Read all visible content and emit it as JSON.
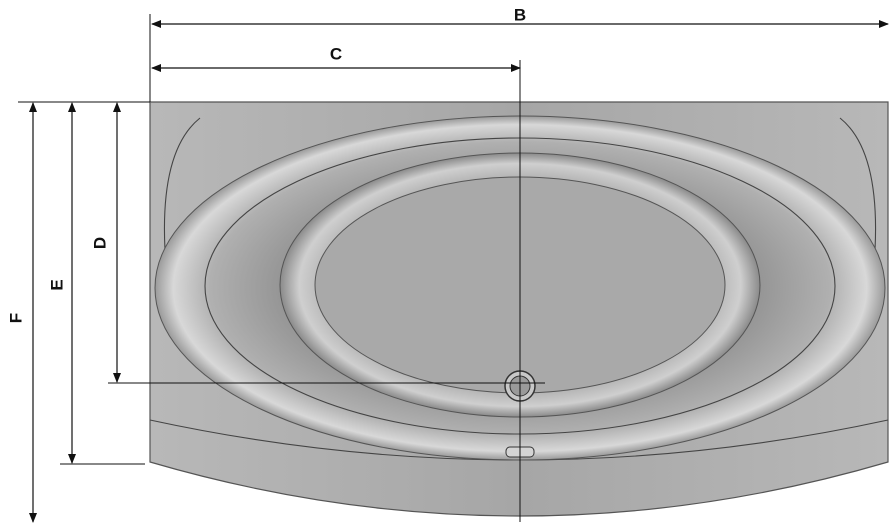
{
  "dimensions": [
    {
      "label": "B"
    },
    {
      "label": "C"
    },
    {
      "label": "D"
    },
    {
      "label": "E"
    },
    {
      "label": "F"
    }
  ]
}
